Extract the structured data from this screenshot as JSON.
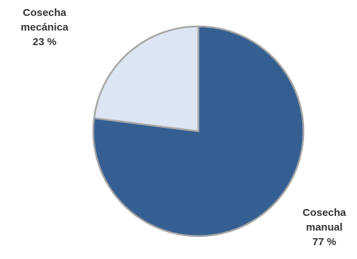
{
  "chart_data": {
    "type": "pie",
    "slices": [
      {
        "name_line1": "Cosecha",
        "name_line2": "manual",
        "value": 77,
        "value_label": "77 %",
        "color": "#355f91"
      },
      {
        "name_line1": "Cosecha",
        "name_line2": "mecánica",
        "value": 23,
        "value_label": "23 %",
        "color": "#dce6f2"
      }
    ],
    "start_angle": "12 o'clock",
    "direction": "clockwise",
    "border_color": "#a6a6a6"
  }
}
